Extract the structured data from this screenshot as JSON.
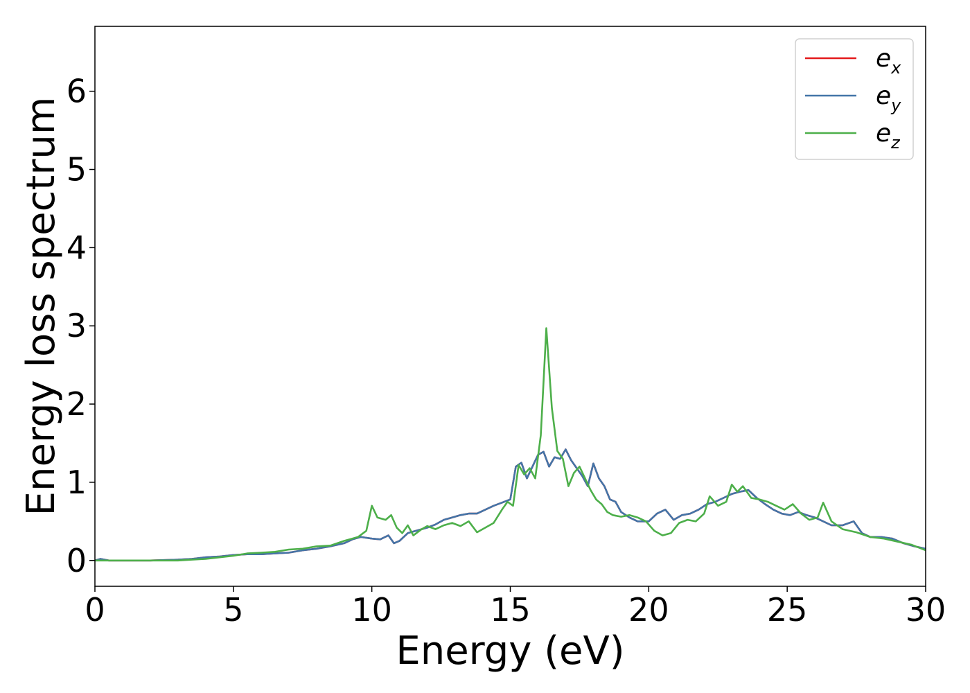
{
  "chart_data": {
    "type": "line",
    "title": "",
    "xlabel": "Energy (eV)",
    "ylabel": "Energy loss spectrum",
    "xlim": [
      0,
      30
    ],
    "ylim": [
      -0.33,
      6.83
    ],
    "xticks": [
      0,
      5,
      10,
      15,
      20,
      25,
      30
    ],
    "yticks": [
      0,
      1,
      2,
      3,
      4,
      5,
      6
    ],
    "grid": false,
    "legend": {
      "placement": "top-right"
    },
    "series": [
      {
        "name": "e_x",
        "label_base": "e",
        "label_sub": "x",
        "color": "#e41a1c",
        "x": [
          0,
          0.2,
          0.5,
          1,
          2,
          3,
          3.5,
          4,
          4.5,
          5,
          5.5,
          6,
          6.5,
          7,
          7.5,
          8,
          8.5,
          9,
          9.3,
          9.6,
          10,
          10.3,
          10.6,
          10.8,
          11,
          11.3,
          11.6,
          12,
          12.3,
          12.6,
          12.9,
          13.2,
          13.5,
          13.8,
          14.1,
          14.4,
          14.7,
          15,
          15.2,
          15.4,
          15.6,
          15.8,
          16,
          16.2,
          16.4,
          16.6,
          16.8,
          17,
          17.2,
          17.4,
          17.6,
          17.8,
          18,
          18.2,
          18.4,
          18.6,
          18.8,
          19,
          19.3,
          19.6,
          20,
          20.3,
          20.6,
          20.9,
          21.2,
          21.5,
          21.8,
          22.1,
          22.4,
          22.7,
          23,
          23.3,
          23.6,
          23.9,
          24.2,
          24.5,
          24.8,
          25.1,
          25.4,
          25.7,
          26,
          26.3,
          26.6,
          27,
          27.4,
          27.7,
          28,
          28.4,
          28.8,
          29.2,
          29.6,
          30
        ],
        "y": [
          0,
          0.02,
          0,
          0,
          0,
          0.01,
          0.02,
          0.04,
          0.05,
          0.07,
          0.08,
          0.08,
          0.09,
          0.1,
          0.13,
          0.15,
          0.18,
          0.22,
          0.27,
          0.3,
          0.28,
          0.27,
          0.32,
          0.22,
          0.25,
          0.35,
          0.38,
          0.42,
          0.46,
          0.52,
          0.55,
          0.58,
          0.6,
          0.6,
          0.65,
          0.7,
          0.74,
          0.78,
          1.2,
          1.25,
          1.05,
          1.2,
          1.35,
          1.39,
          1.2,
          1.32,
          1.3,
          1.42,
          1.28,
          1.18,
          1.08,
          0.95,
          1.24,
          1.05,
          0.95,
          0.78,
          0.75,
          0.62,
          0.55,
          0.5,
          0.5,
          0.6,
          0.65,
          0.52,
          0.58,
          0.6,
          0.65,
          0.72,
          0.75,
          0.8,
          0.85,
          0.88,
          0.9,
          0.8,
          0.72,
          0.65,
          0.6,
          0.58,
          0.62,
          0.58,
          0.55,
          0.5,
          0.45,
          0.45,
          0.5,
          0.35,
          0.3,
          0.3,
          0.28,
          0.22,
          0.18,
          0.15
        ]
      },
      {
        "name": "e_y",
        "label_base": "e",
        "label_sub": "y",
        "color": "#4375a8",
        "x": [
          0,
          0.2,
          0.5,
          1,
          2,
          3,
          3.5,
          4,
          4.5,
          5,
          5.5,
          6,
          6.5,
          7,
          7.5,
          8,
          8.5,
          9,
          9.3,
          9.6,
          10,
          10.3,
          10.6,
          10.8,
          11,
          11.3,
          11.6,
          12,
          12.3,
          12.6,
          12.9,
          13.2,
          13.5,
          13.8,
          14.1,
          14.4,
          14.7,
          15,
          15.2,
          15.4,
          15.6,
          15.8,
          16,
          16.2,
          16.4,
          16.6,
          16.8,
          17,
          17.2,
          17.4,
          17.6,
          17.8,
          18,
          18.2,
          18.4,
          18.6,
          18.8,
          19,
          19.3,
          19.6,
          20,
          20.3,
          20.6,
          20.9,
          21.2,
          21.5,
          21.8,
          22.1,
          22.4,
          22.7,
          23,
          23.3,
          23.6,
          23.9,
          24.2,
          24.5,
          24.8,
          25.1,
          25.4,
          25.7,
          26,
          26.3,
          26.6,
          27,
          27.4,
          27.7,
          28,
          28.4,
          28.8,
          29.2,
          29.6,
          30
        ],
        "y": [
          0,
          0.02,
          0,
          0,
          0,
          0.01,
          0.02,
          0.04,
          0.05,
          0.07,
          0.08,
          0.08,
          0.09,
          0.1,
          0.13,
          0.15,
          0.18,
          0.22,
          0.27,
          0.3,
          0.28,
          0.27,
          0.32,
          0.22,
          0.25,
          0.35,
          0.38,
          0.42,
          0.46,
          0.52,
          0.55,
          0.58,
          0.6,
          0.6,
          0.65,
          0.7,
          0.74,
          0.78,
          1.2,
          1.25,
          1.05,
          1.2,
          1.35,
          1.39,
          1.2,
          1.32,
          1.3,
          1.42,
          1.28,
          1.18,
          1.08,
          0.95,
          1.24,
          1.05,
          0.95,
          0.78,
          0.75,
          0.62,
          0.55,
          0.5,
          0.5,
          0.6,
          0.65,
          0.52,
          0.58,
          0.6,
          0.65,
          0.72,
          0.75,
          0.8,
          0.85,
          0.88,
          0.9,
          0.8,
          0.72,
          0.65,
          0.6,
          0.58,
          0.62,
          0.58,
          0.55,
          0.5,
          0.45,
          0.45,
          0.5,
          0.35,
          0.3,
          0.3,
          0.28,
          0.22,
          0.18,
          0.15
        ]
      },
      {
        "name": "e_z",
        "label_base": "e",
        "label_sub": "z",
        "color": "#4daf4a",
        "x": [
          0,
          0.5,
          1,
          2,
          3,
          3.5,
          4,
          4.5,
          5,
          5.5,
          6,
          6.5,
          7,
          7.5,
          8,
          8.5,
          9,
          9.5,
          9.8,
          10,
          10.2,
          10.5,
          10.7,
          10.9,
          11.1,
          11.3,
          11.5,
          11.8,
          12,
          12.3,
          12.6,
          12.9,
          13.2,
          13.5,
          13.8,
          14.1,
          14.4,
          14.7,
          14.9,
          15.1,
          15.3,
          15.5,
          15.7,
          15.9,
          16.1,
          16.3,
          16.5,
          16.7,
          16.9,
          17.1,
          17.3,
          17.5,
          17.7,
          17.9,
          18.1,
          18.3,
          18.5,
          18.7,
          19,
          19.3,
          19.6,
          19.9,
          20.2,
          20.5,
          20.8,
          21.1,
          21.4,
          21.7,
          22,
          22.2,
          22.5,
          22.8,
          23,
          23.2,
          23.4,
          23.7,
          24,
          24.3,
          24.6,
          24.9,
          25.2,
          25.5,
          25.8,
          26.1,
          26.3,
          26.6,
          27,
          27.5,
          28,
          28.5,
          29,
          29.5,
          30
        ],
        "y": [
          0,
          0,
          0,
          0,
          0,
          0.01,
          0.02,
          0.04,
          0.06,
          0.09,
          0.1,
          0.11,
          0.14,
          0.15,
          0.18,
          0.19,
          0.25,
          0.3,
          0.38,
          0.7,
          0.55,
          0.52,
          0.58,
          0.42,
          0.35,
          0.45,
          0.32,
          0.4,
          0.44,
          0.4,
          0.45,
          0.48,
          0.44,
          0.5,
          0.36,
          0.42,
          0.48,
          0.65,
          0.75,
          0.7,
          1.22,
          1.1,
          1.18,
          1.05,
          1.6,
          2.97,
          1.95,
          1.4,
          1.3,
          0.95,
          1.12,
          1.2,
          1.05,
          0.9,
          0.78,
          0.72,
          0.62,
          0.58,
          0.56,
          0.58,
          0.55,
          0.5,
          0.38,
          0.32,
          0.35,
          0.48,
          0.52,
          0.5,
          0.6,
          0.82,
          0.7,
          0.75,
          0.97,
          0.88,
          0.95,
          0.8,
          0.78,
          0.75,
          0.7,
          0.65,
          0.72,
          0.6,
          0.52,
          0.55,
          0.74,
          0.5,
          0.4,
          0.36,
          0.3,
          0.28,
          0.24,
          0.2,
          0.13
        ]
      }
    ]
  }
}
